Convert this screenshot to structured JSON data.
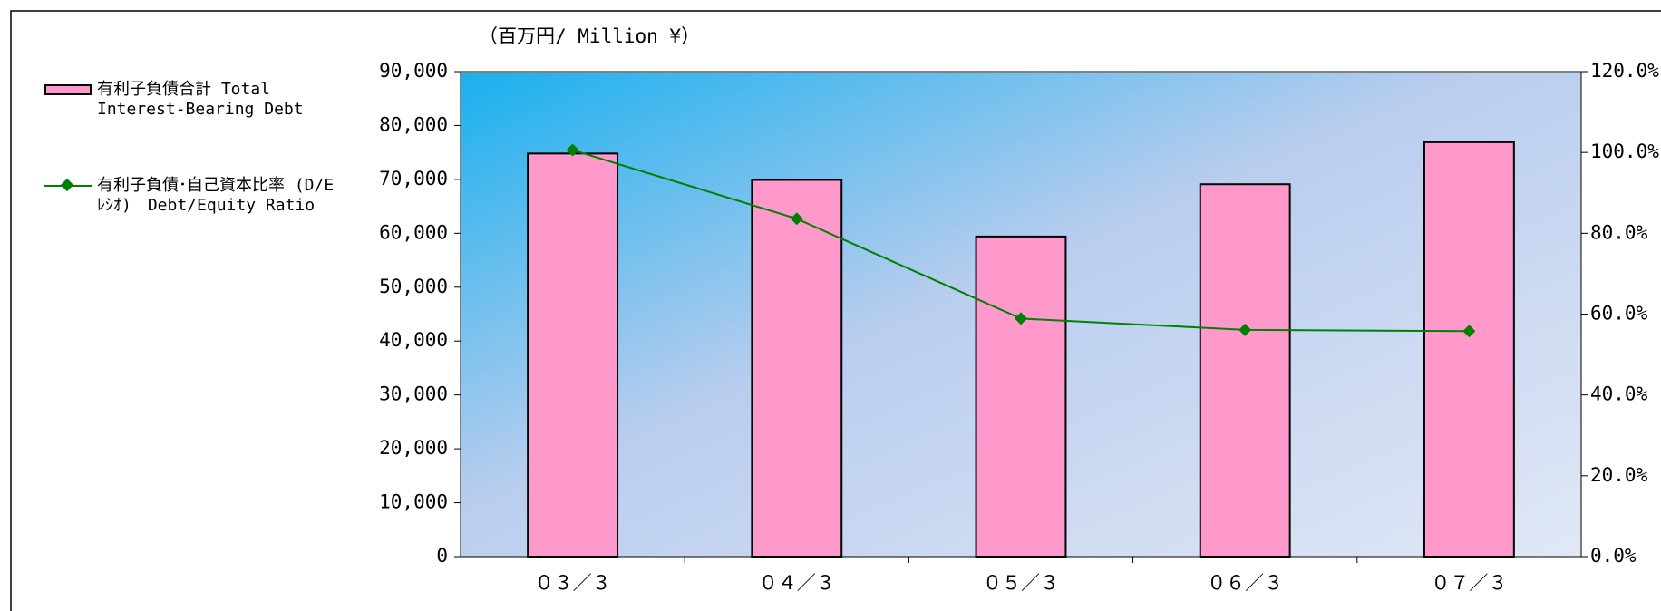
{
  "chart_data": {
    "type": "bar",
    "y_label": "（百万円/ Million ¥）",
    "categories": [
      "０３／３",
      "０４／３",
      "０５／３",
      "０６／３",
      "０７／３"
    ],
    "series": [
      {
        "name": "有利子負債合計 Total Interest-Bearing Debt",
        "type": "bar",
        "color": "#ff99cc",
        "values": [
          74800,
          69900,
          59400,
          69100,
          76900
        ]
      },
      {
        "name": "有利子負債･自己資本比率 (D/Eﾚｼｵ)　Debt/Equity Ratio",
        "type": "line",
        "axis": "y2",
        "color": "#008000",
        "values": [
          100.6,
          83.6,
          58.9,
          56.1,
          55.8
        ]
      }
    ],
    "ylim": [
      0,
      90000
    ],
    "yticks": [
      0,
      {
        "value": 10000,
        "label": "10,000"
      },
      {
        "value": 20000,
        "label": "20,000"
      },
      {
        "value": 30000,
        "label": "30,000"
      },
      {
        "value": 40000,
        "label": "40,000"
      },
      {
        "value": 50000,
        "label": "50,000"
      },
      {
        "value": 60000,
        "label": "60,000"
      },
      {
        "value": 70000,
        "label": "70,000"
      },
      {
        "value": 80000,
        "label": "80,000"
      },
      {
        "value": 90000,
        "label": "90,000"
      }
    ],
    "y2lim": [
      0,
      120
    ],
    "y2ticks": [
      {
        "value": 0,
        "label": "0.0%"
      },
      {
        "value": 20,
        "label": "20.0%"
      },
      {
        "value": 40,
        "label": "40.0%"
      },
      {
        "value": 60,
        "label": "60.0%"
      },
      {
        "value": 80,
        "label": "80.0%"
      },
      {
        "value": 100,
        "label": "100.0%"
      },
      {
        "value": 120,
        "label": "120.0%"
      }
    ],
    "legend": "left"
  }
}
